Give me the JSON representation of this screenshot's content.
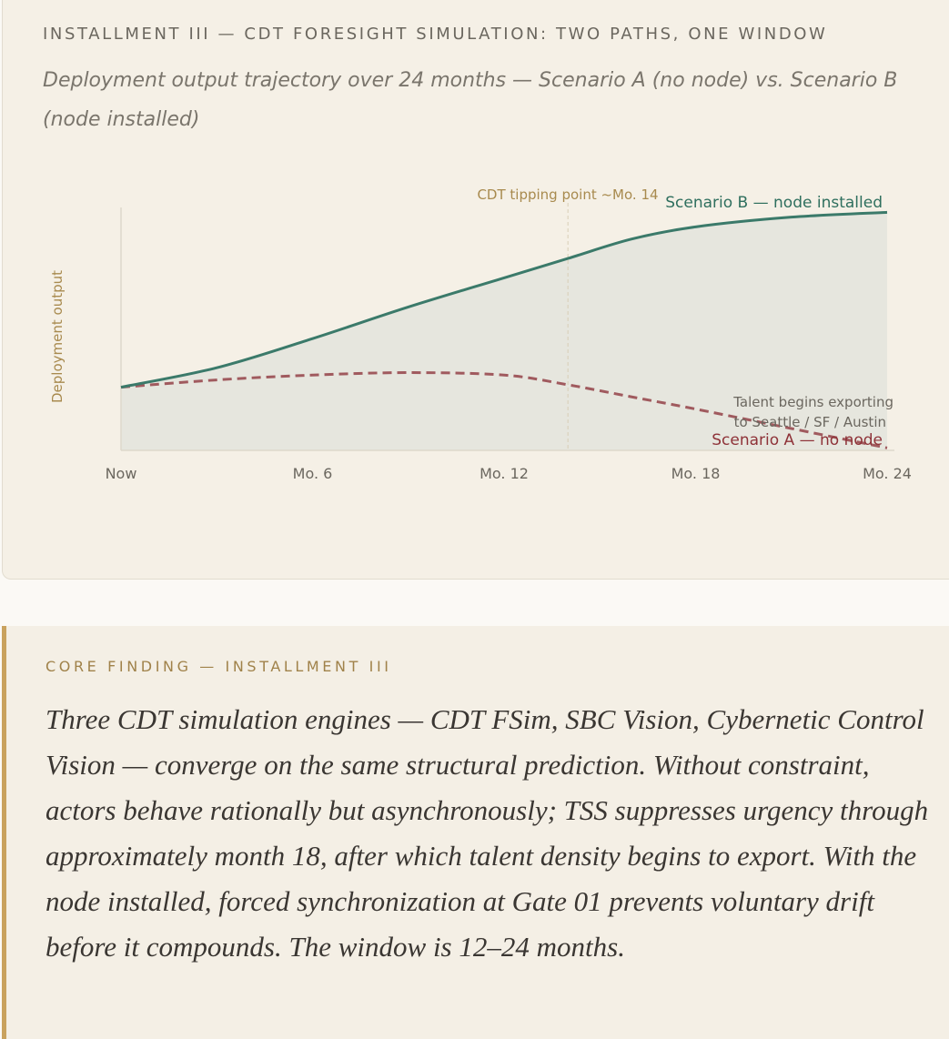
{
  "card": {
    "title": "INSTALLMENT III — CDT FORESIGHT SIMULATION: TWO PATHS, ONE WINDOW",
    "subtitle": "Deployment output trajectory over 24 months — Scenario A (no node) vs. Scenario B (node installed)"
  },
  "chart_data": {
    "type": "line",
    "title": "Deployment output trajectory over 24 months",
    "xlabel": "",
    "ylabel": "Deployment output",
    "x_ticks": [
      0,
      6,
      12,
      18,
      24
    ],
    "x_tick_labels": [
      "Now",
      "Mo. 6",
      "Mo. 12",
      "Mo. 18",
      "Mo. 24"
    ],
    "xlim": [
      0,
      24
    ],
    "ylim": [
      0,
      100
    ],
    "series": [
      {
        "name": "Scenario B — node installed",
        "style": "solid",
        "color": "#3b7a6a",
        "x": [
          0,
          3,
          6,
          9,
          12,
          14,
          16,
          18,
          21,
          24
        ],
        "values": [
          26,
          34,
          46,
          59,
          71,
          79,
          87,
          92,
          96,
          98
        ]
      },
      {
        "name": "Scenario A — no node",
        "style": "dashed",
        "color": "#a05a5e",
        "x": [
          0,
          3,
          6,
          9,
          12,
          14,
          16,
          18,
          21,
          24
        ],
        "values": [
          26,
          29,
          31,
          32,
          31,
          27,
          22,
          17,
          9,
          1
        ]
      }
    ],
    "annotations": [
      {
        "text": "CDT tipping point ~Mo. 14",
        "x": 14,
        "color": "#a88a4e"
      },
      {
        "text": "Talent begins exporting",
        "x": 24,
        "y": 20
      },
      {
        "text": "to Seattle / SF / Austin",
        "x": 24,
        "y": 13
      }
    ],
    "fill_color": "#e6e6de",
    "grid": false
  },
  "finding": {
    "label": "CORE FINDING — INSTALLMENT III",
    "body": "Three CDT simulation engines — CDT FSim, SBC Vision, Cybernetic Control Vision — converge on the same structural prediction. Without constraint, actors behave rationally but asynchronously; TSS suppresses urgency through approximately month 18, after which talent density begins to export. With the node installed, forced synchronization at Gate 01 prevents voluntary drift before it compounds. The window is 12–24 months."
  }
}
